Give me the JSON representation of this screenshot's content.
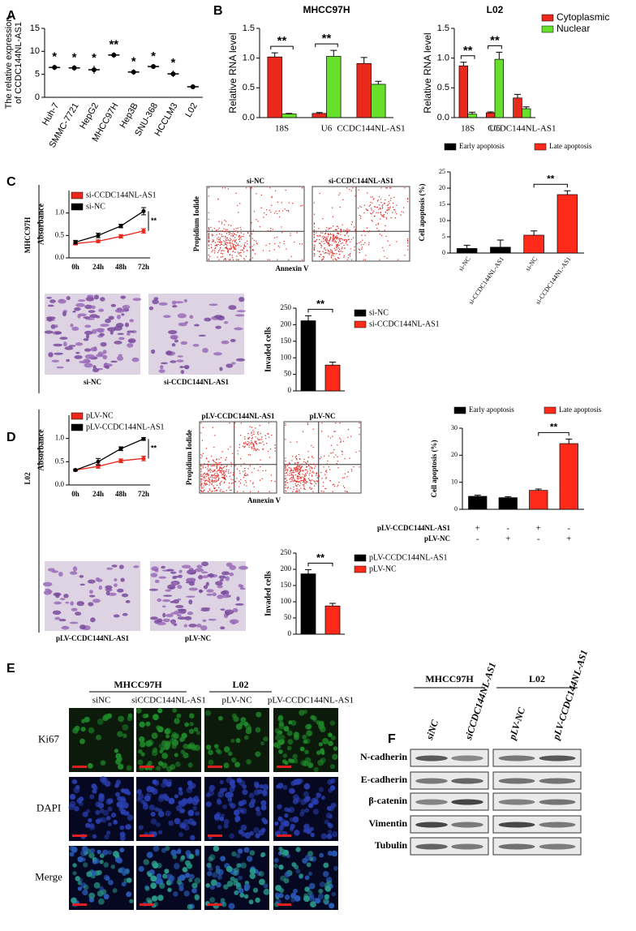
{
  "panels": [
    "A",
    "B",
    "C",
    "D",
    "E",
    "F"
  ],
  "side_labels": [
    "MHCC97H",
    "L02"
  ],
  "chart_data": [
    {
      "type": "dot",
      "ylabel": [
        "The relative expression",
        "of CCDC144NL-AS1"
      ],
      "categories": [
        "Huh-7",
        "SMMC-7721",
        "HepG2",
        "MHCC97H",
        "Hep3B",
        "SNU-368",
        "HCCLM3",
        "L02"
      ],
      "values": [
        6.5,
        6.4,
        6.0,
        9.2,
        5.5,
        6.7,
        5.1,
        2.3
      ],
      "errors": [
        0.6,
        0.6,
        0.9,
        0.6,
        0.6,
        0.5,
        0.7,
        0.4
      ],
      "annotations": [
        "*",
        "*",
        "*",
        "**",
        "*",
        "*",
        "*",
        null
      ],
      "ylim": [
        0,
        15
      ],
      "yticks": [
        0,
        5,
        10,
        15
      ],
      "color": "#000000"
    },
    {
      "type": "bar",
      "title": "MHCC97H",
      "ylabel": "Relative RNA level",
      "categories": [
        "18S",
        "U6",
        "CCDC144NL-AS1"
      ],
      "grouped": true,
      "bracket": "group",
      "series": [
        {
          "color": "#e8291c",
          "values": [
            1.02,
            0.07,
            0.91
          ],
          "errors": [
            0.07,
            0.015,
            0.1
          ]
        },
        {
          "color": "#66e02a",
          "values": [
            0.06,
            1.03,
            0.56
          ],
          "errors": [
            0.01,
            0.1,
            0.05
          ]
        }
      ],
      "annotations": [
        "**",
        "**",
        null
      ],
      "ylim": [
        0,
        1.5
      ],
      "yticks": [
        {
          "value": 0,
          "label": "0.0"
        },
        0.5,
        {
          "value": 1,
          "label": "1.0"
        },
        1.5
      ]
    },
    {
      "type": "bar",
      "title": "L02",
      "ylabel": "Relative RNA level",
      "categories": [
        "18S",
        "U6",
        "CCDC144NL-AS1"
      ],
      "grouped": true,
      "bracket": "group",
      "series": [
        {
          "name": "Cytoplasmic",
          "color": "#e8291c",
          "values": [
            0.87,
            0.08,
            0.33
          ],
          "errors": [
            0.06,
            0.015,
            0.06
          ]
        },
        {
          "name": "Nuclear",
          "color": "#66e02a",
          "values": [
            0.06,
            0.98,
            0.15
          ],
          "errors": [
            0.03,
            0.12,
            0.03
          ]
        }
      ],
      "annotations": [
        "**",
        "**",
        null
      ],
      "ylim": [
        0,
        1.5
      ],
      "yticks": [
        {
          "value": 0,
          "label": "0.0"
        },
        0.5,
        {
          "value": 1,
          "label": "1.0"
        },
        1.5
      ]
    },
    {
      "type": "line",
      "ylabel": "Absorbance",
      "categories": [
        "0h",
        "24h",
        "48h",
        "72h"
      ],
      "series": [
        {
          "name": "si-CCDC144NL-AS1",
          "color": "#e8291c",
          "values": [
            0.32,
            0.37,
            0.48,
            0.6
          ],
          "errors": [
            0.03,
            0.03,
            0.04,
            0.05
          ]
        },
        {
          "name": "si-NC",
          "color": "#000000",
          "values": [
            0.35,
            0.5,
            0.71,
            1.04
          ],
          "errors": [
            0.04,
            0.05,
            0.04,
            0.08
          ]
        }
      ],
      "annotation": "**",
      "ylim": [
        0,
        1.5
      ],
      "yticks": [
        {
          "value": 0,
          "label": "0.0"
        },
        0.5,
        {
          "value": 1,
          "label": "1.0"
        }
      ]
    },
    {
      "type": "bar",
      "ylabel": "Cell apoptosis (%)",
      "categories": [
        "si-NC",
        "si-CCDC144NL-AS1",
        "si-NC",
        "si-CCDC144NL-AS1"
      ],
      "grouped": false,
      "bracket": "pair",
      "series": [
        {
          "name": "Early apoptosis",
          "color": "#000000",
          "values": [
            1.4,
            1.8,
            null,
            null
          ],
          "errors": [
            1,
            2.2,
            null,
            null
          ]
        },
        {
          "name": "Late apoptosis",
          "color": "#ff2a1a",
          "values": [
            null,
            null,
            5.5,
            18
          ],
          "errors": [
            null,
            null,
            1.3,
            1.2
          ]
        }
      ],
      "annotations": [
        null,
        null,
        null,
        "**"
      ],
      "ylim": [
        0,
        25
      ],
      "yticks": [
        0,
        5,
        10,
        15,
        20,
        25
      ]
    },
    {
      "type": "bar",
      "ylabel": "Invaded cells",
      "categories": [
        null,
        null
      ],
      "grouped": false,
      "bracket": "pair",
      "series": [
        {
          "name": "si-NC",
          "color": "#000000",
          "values": [
            212,
            null
          ],
          "errors": [
            15,
            null
          ]
        },
        {
          "name": "si-CCDC144NL-AS1",
          "color": "#ff2a1a",
          "values": [
            null,
            78
          ],
          "errors": [
            null,
            9
          ]
        }
      ],
      "annotations": [
        null,
        "**"
      ],
      "ylim": [
        0,
        250
      ],
      "yticks": [
        0,
        50,
        100,
        150,
        200,
        250
      ]
    },
    {
      "type": "line",
      "ylabel": "Absorbance",
      "categories": [
        "0h",
        "24h",
        "48h",
        "72h"
      ],
      "series": [
        {
          "name": "pLV-NC",
          "color": "#e8291c",
          "values": [
            0.32,
            0.4,
            0.52,
            0.57
          ],
          "errors": [
            0.02,
            0.04,
            0.04,
            0.05
          ]
        },
        {
          "name": "pLV-CCDC144NL-AS1",
          "color": "#000000",
          "values": [
            0.32,
            0.5,
            0.78,
            0.99
          ],
          "errors": [
            0.02,
            0.07,
            0.04,
            0.03
          ]
        }
      ],
      "annotation": "**",
      "ylim": [
        0,
        1.5
      ],
      "yticks": [
        {
          "value": 0,
          "label": "0.0"
        },
        0.5,
        {
          "value": 1,
          "label": "1.0"
        }
      ]
    },
    {
      "type": "bar",
      "ylabel": "Cell apoptosis (%)",
      "categories": [
        null,
        null,
        null,
        null
      ],
      "grouped": false,
      "bracket": "pair",
      "series": [
        {
          "name": "Early apoptosis",
          "color": "#000000",
          "values": [
            4.8,
            4.3,
            null,
            null
          ],
          "errors": [
            0.4,
            0.4,
            null,
            null
          ]
        },
        {
          "name": "Late apoptosis",
          "color": "#ff2a1a",
          "values": [
            null,
            null,
            7,
            24.3
          ],
          "errors": [
            null,
            null,
            0.5,
            1.7
          ]
        }
      ],
      "annotations": [
        null,
        null,
        null,
        "**"
      ],
      "ylim": [
        0,
        30
      ],
      "yticks": [
        0,
        10,
        20,
        30
      ],
      "table": [
        {
          "label": "pLV-CCDC144NL-AS1",
          "cells": [
            "+",
            "-",
            "+",
            "-"
          ]
        },
        {
          "label": "pLV-NC",
          "cells": [
            "-",
            "+",
            "-",
            "+"
          ]
        }
      ]
    },
    {
      "type": "bar",
      "ylabel": "Invaded cells",
      "categories": [
        null,
        null
      ],
      "grouped": false,
      "bracket": "pair",
      "series": [
        {
          "name": "pLV-CCDC144NL-AS1",
          "color": "#000000",
          "values": [
            186,
            null
          ],
          "errors": [
            13,
            null
          ]
        },
        {
          "name": "pLV-NC",
          "color": "#ff2a1a",
          "values": [
            null,
            87
          ],
          "errors": [
            null,
            8
          ]
        }
      ],
      "annotations": [
        null,
        "**"
      ],
      "ylim": [
        0,
        250
      ],
      "yticks": [
        0,
        50,
        100,
        150,
        200,
        250
      ]
    }
  ],
  "flow": [
    {
      "labels": [
        "si-NC",
        "si-CCDC144NL-AS1"
      ],
      "ylabel": "Propidium Iodide",
      "xlabel": "Annexin V"
    },
    {
      "labels": [
        "pLV-CCDC144NL-AS1",
        "pLV-NC"
      ],
      "ylabel": "Propidium Iodide",
      "xlabel": "Annexin V"
    }
  ],
  "micrographs": [
    [
      "si-NC",
      "si-CCDC144NL-AS1"
    ],
    [
      "pLV-CCDC144NL-AS1",
      "pLV-NC"
    ]
  ],
  "if_panel": {
    "groups": [
      "MHCC97H",
      "L02"
    ],
    "columns": [
      "siNC",
      "siCCDC144NL-AS1",
      "pLV-NC",
      "pLV-CCDC144NL-AS1"
    ],
    "rows": [
      "Ki67",
      "DAPI",
      "Merge"
    ]
  },
  "western": {
    "groups": [
      "MHCC97H",
      "L02"
    ],
    "lanes": [
      "siNC",
      "siCCDC144NL-AS1",
      "pLV-NC",
      "pLV-CCDC144NL-AS1"
    ],
    "proteins": [
      "N-cadherin",
      "E-cadherin",
      "β-catenin",
      "Vimentin",
      "Tubulin"
    ]
  }
}
